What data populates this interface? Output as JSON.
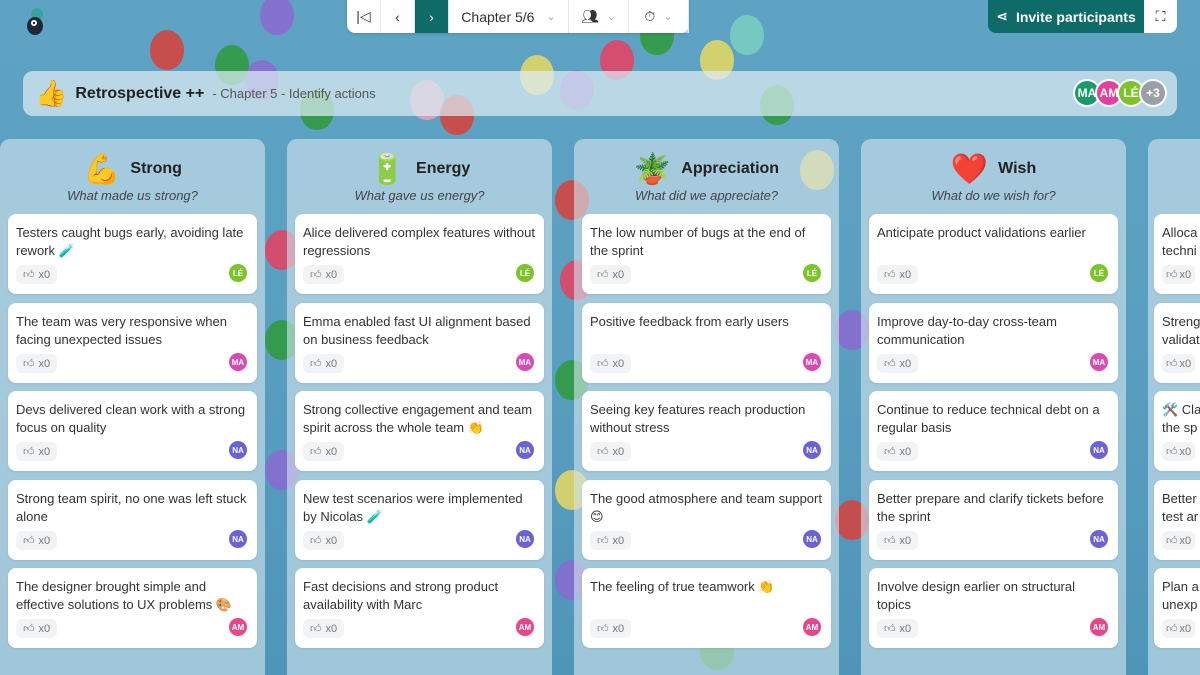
{
  "toolbar": {
    "chapter": "Chapter 5/6",
    "invite_label": "Invite participants"
  },
  "banner": {
    "title": "Retrospective ++",
    "subtitle": "- Chapter 5 - Identify actions",
    "avatars": [
      {
        "initials": "MA",
        "color": "#1a9a6a"
      },
      {
        "initials": "AM",
        "color": "#e8409a"
      },
      {
        "initials": "LÉ",
        "color": "#7cc42a"
      },
      {
        "initials": "+3",
        "color": "#9aa0aa"
      }
    ]
  },
  "colors": {
    "accent": "#0f6b68",
    "LÉ": "#7cc42a",
    "MA": "#d94bb0",
    "NA": "#6a62d6",
    "AM": "#e8468a"
  },
  "columns": [
    {
      "title": "Strong",
      "icon": "💪",
      "subtitle": "What made us strong?",
      "cards": [
        {
          "text": "Testers caught bugs early, avoiding late rework 🧪",
          "likes": "x0",
          "author": "LÉ"
        },
        {
          "text": "The team was very responsive when facing unexpected issues",
          "likes": "x0",
          "author": "MA"
        },
        {
          "text": "Devs delivered clean work with a strong focus on quality",
          "likes": "x0",
          "author": "NA"
        },
        {
          "text": "Strong team spirit, no one was left stuck alone",
          "likes": "x0",
          "author": "NA"
        },
        {
          "text": "The designer brought simple and effective solutions to UX problems 🎨",
          "likes": "x0",
          "author": "AM"
        }
      ]
    },
    {
      "title": "Energy",
      "icon": "🔋",
      "subtitle": "What gave us energy?",
      "cards": [
        {
          "text": "Alice delivered complex features without regressions",
          "likes": "x0",
          "author": "LÉ"
        },
        {
          "text": "Emma enabled fast UI alignment based on business feedback",
          "likes": "x0",
          "author": "MA"
        },
        {
          "text": "Strong collective engagement and team spirit across the whole team 👏",
          "likes": "x0",
          "author": "NA"
        },
        {
          "text": "New test scenarios were implemented by Nicolas 🧪",
          "likes": "x0",
          "author": "NA"
        },
        {
          "text": "Fast decisions and strong product availability with Marc",
          "likes": "x0",
          "author": "AM"
        }
      ]
    },
    {
      "title": "Appreciation",
      "icon": "🪴",
      "subtitle": "What did we appreciate?",
      "cards": [
        {
          "text": "The low number of bugs at the end of the sprint",
          "likes": "x0",
          "author": "LÉ"
        },
        {
          "text": "Positive feedback from early users",
          "likes": "x0",
          "author": "MA"
        },
        {
          "text": "Seeing key features reach production without stress",
          "likes": "x0",
          "author": "NA"
        },
        {
          "text": "The good atmosphere and team support 😊",
          "likes": "x0",
          "author": "NA"
        },
        {
          "text": "The feeling of true teamwork 👏",
          "likes": "x0",
          "author": "AM"
        }
      ]
    },
    {
      "title": "Wish",
      "icon": "❤️",
      "subtitle": "What do we wish for?",
      "cards": [
        {
          "text": "Anticipate product validations earlier",
          "likes": "x0",
          "author": "LÉ"
        },
        {
          "text": "Improve day-to-day cross-team communication",
          "likes": "x0",
          "author": "MA"
        },
        {
          "text": "Continue to reduce technical debt on a regular basis",
          "likes": "x0",
          "author": "NA"
        },
        {
          "text": "Better prepare and clarify tickets before the sprint",
          "likes": "x0",
          "author": "NA"
        },
        {
          "text": "Involve design earlier on structural topics",
          "likes": "x0",
          "author": "AM"
        }
      ]
    },
    {
      "title": "",
      "icon": "",
      "subtitle": "",
      "cards": [
        {
          "text": "Alloca\ntechni",
          "likes": "x0",
          "author": ""
        },
        {
          "text": "Streng\nvalidat",
          "likes": "x0",
          "author": ""
        },
        {
          "text": "🛠️ Cla\nthe sp",
          "likes": "x0",
          "author": ""
        },
        {
          "text": "Better\ntest ar",
          "likes": "x0",
          "author": ""
        },
        {
          "text": "Plan a\nunexp",
          "likes": "x0",
          "author": ""
        }
      ]
    }
  ]
}
